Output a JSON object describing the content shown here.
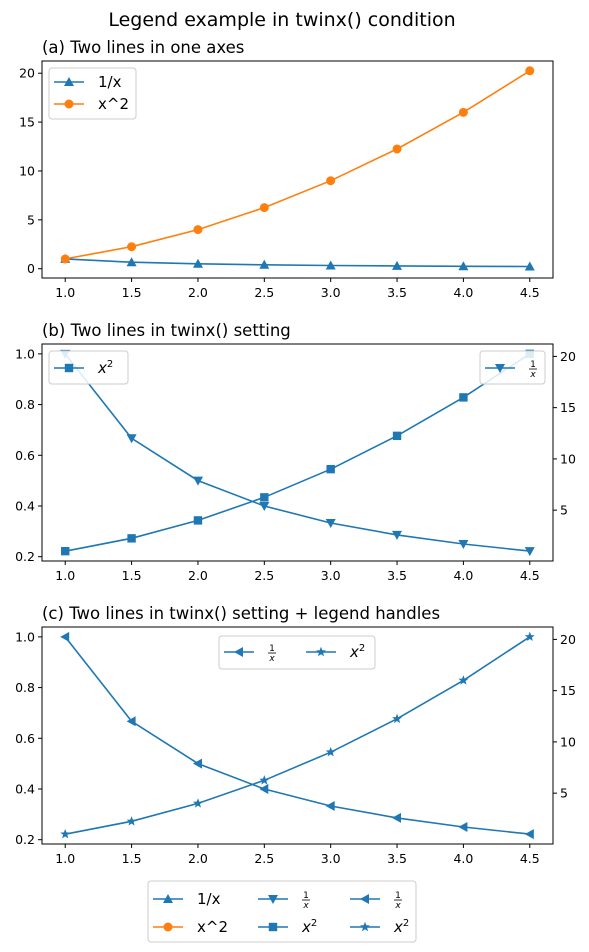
{
  "figure": {
    "title": "Legend example in twinx() condition"
  },
  "colors": {
    "blue": "#1f77b4",
    "orange": "#ff7f0e"
  },
  "chart_data": [
    {
      "type": "line",
      "title": "(a) Two lines in one axes",
      "x": [
        1.0,
        1.5,
        2.0,
        2.5,
        3.0,
        3.5,
        4.0,
        4.5
      ],
      "xlim": [
        0.825,
        4.675
      ],
      "ylim": [
        -0.95,
        21.25
      ],
      "x_ticks": [
        "1.0",
        "1.5",
        "2.0",
        "2.5",
        "3.0",
        "3.5",
        "4.0",
        "4.5"
      ],
      "y_ticks": [
        "0",
        "5",
        "10",
        "15",
        "20"
      ],
      "series": [
        {
          "name": "1/x",
          "marker": "triangle-up",
          "color": "#1f77b4",
          "values": [
            1.0,
            0.667,
            0.5,
            0.4,
            0.333,
            0.286,
            0.25,
            0.222
          ]
        },
        {
          "name": "x^2",
          "marker": "circle",
          "color": "#ff7f0e",
          "values": [
            1.0,
            2.25,
            4.0,
            6.25,
            9.0,
            12.25,
            16.0,
            20.25
          ]
        }
      ],
      "legend": {
        "placement": "upper-left",
        "entries": [
          "1/x",
          "x^2"
        ]
      }
    },
    {
      "type": "line",
      "title": "(b) Two lines in twinx() setting",
      "x": [
        1.0,
        1.5,
        2.0,
        2.5,
        3.0,
        3.5,
        4.0,
        4.5
      ],
      "xlim": [
        0.825,
        4.675
      ],
      "left_ylim": [
        0.183,
        1.039
      ],
      "right_ylim": [
        0.04,
        21.21
      ],
      "x_ticks": [
        "1.0",
        "1.5",
        "2.0",
        "2.5",
        "3.0",
        "3.5",
        "4.0",
        "4.5"
      ],
      "left_y_ticks": [
        "0.2",
        "0.4",
        "0.6",
        "0.8",
        "1.0"
      ],
      "right_y_ticks": [
        "5",
        "10",
        "15",
        "20"
      ],
      "series": [
        {
          "name": "1/x",
          "axis": "left",
          "marker": "triangle-down",
          "color": "#1f77b4",
          "values": [
            1.0,
            0.667,
            0.5,
            0.4,
            0.333,
            0.286,
            0.25,
            0.222
          ]
        },
        {
          "name": "x^2",
          "axis": "right",
          "marker": "square",
          "color": "#1f77b4",
          "values": [
            1.0,
            2.25,
            4.0,
            6.25,
            9.0,
            12.25,
            16.0,
            20.25
          ]
        }
      ],
      "legends": [
        {
          "placement": "upper-left",
          "entries": [
            "x2"
          ]
        },
        {
          "placement": "upper-right",
          "entries": [
            "1/x"
          ]
        }
      ]
    },
    {
      "type": "line",
      "title": "(c) Two lines in twinx() setting + legend handles",
      "x": [
        1.0,
        1.5,
        2.0,
        2.5,
        3.0,
        3.5,
        4.0,
        4.5
      ],
      "xlim": [
        0.825,
        4.675
      ],
      "left_ylim": [
        0.183,
        1.039
      ],
      "right_ylim": [
        0.04,
        21.21
      ],
      "x_ticks": [
        "1.0",
        "1.5",
        "2.0",
        "2.5",
        "3.0",
        "3.5",
        "4.0",
        "4.5"
      ],
      "left_y_ticks": [
        "0.2",
        "0.4",
        "0.6",
        "0.8",
        "1.0"
      ],
      "right_y_ticks": [
        "5",
        "10",
        "15",
        "20"
      ],
      "series": [
        {
          "name": "1/x",
          "axis": "left",
          "marker": "triangle-left",
          "color": "#1f77b4",
          "values": [
            1.0,
            0.667,
            0.5,
            0.4,
            0.333,
            0.286,
            0.25,
            0.222
          ]
        },
        {
          "name": "x^2",
          "axis": "right",
          "marker": "star",
          "color": "#1f77b4",
          "values": [
            1.0,
            2.25,
            4.0,
            6.25,
            9.0,
            12.25,
            16.0,
            20.25
          ]
        }
      ],
      "legend": {
        "placement": "upper-center",
        "ncol": 2,
        "entries": [
          "1/x",
          "x2"
        ]
      }
    }
  ],
  "figure_legend": {
    "placement": "bottom-center",
    "ncol": 3,
    "entries": [
      {
        "label": "1/x",
        "marker": "triangle-up",
        "color": "#1f77b4"
      },
      {
        "label": "x^2",
        "marker": "circle",
        "color": "#ff7f0e"
      },
      {
        "label": "1/x",
        "marker": "triangle-down",
        "color": "#1f77b4",
        "math": "frac"
      },
      {
        "label": "x2",
        "marker": "square",
        "color": "#1f77b4",
        "math": "sup"
      },
      {
        "label": "1/x",
        "marker": "triangle-left",
        "color": "#1f77b4",
        "math": "frac"
      },
      {
        "label": "x2",
        "marker": "star",
        "color": "#1f77b4",
        "math": "sup"
      }
    ]
  }
}
